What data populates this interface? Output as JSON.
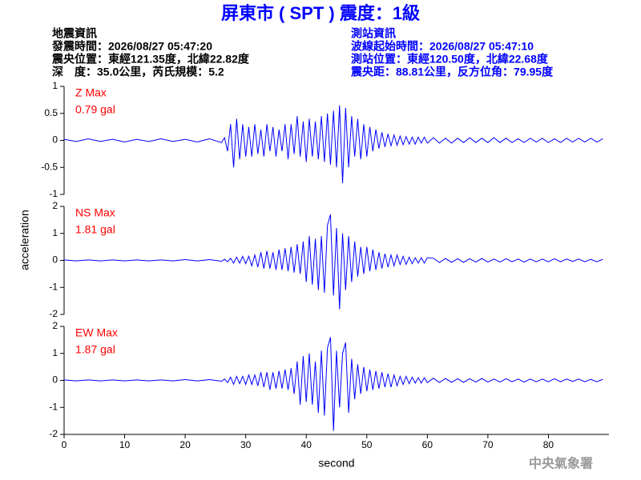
{
  "header": {
    "title": "屏東市 ( SPT ) 震度：1級",
    "left": [
      "地震資訊",
      "發震時間：2026/08/27 05:47:20",
      "震央位置：東經121.35度，北緯22.82度",
      "深　度：35.0公里，芮氏規模：5.2"
    ],
    "right": [
      "測站資訊",
      "波線起始時間：2026/08/27 05:47:10",
      "測站位置：東經120.50度，北緯22.68度",
      "震央距：88.81公里，反方位角：79.95度"
    ]
  },
  "footer": "中央氣象署",
  "chart_data": [
    {
      "type": "line",
      "annotations": [
        "Z Max",
        "0.79 gal"
      ],
      "xlim": [
        0,
        90
      ],
      "ylim": [
        -1,
        1
      ],
      "yticks": [
        -1,
        -0.5,
        0,
        0.5,
        1
      ],
      "x": [
        0,
        2,
        4,
        6,
        8,
        10,
        12,
        14,
        16,
        18,
        20,
        22,
        24,
        26,
        26.5,
        27,
        27.5,
        28,
        28.5,
        29,
        29.5,
        30,
        30.5,
        31,
        31.5,
        32,
        32.5,
        33,
        33.5,
        34,
        34.5,
        35,
        35.5,
        36,
        36.5,
        37,
        37.5,
        38,
        38.5,
        39,
        39.5,
        40,
        40.5,
        41,
        41.5,
        42,
        42.5,
        43,
        43.5,
        44,
        44.5,
        45,
        45.5,
        46,
        46.5,
        47,
        47.5,
        48,
        48.5,
        49,
        49.5,
        50,
        50.5,
        51,
        51.5,
        52,
        52.5,
        53,
        53.5,
        54,
        54.5,
        55,
        55.5,
        56,
        56.5,
        57,
        57.5,
        58,
        58.5,
        59,
        59.5,
        60,
        61,
        62,
        63,
        64,
        65,
        66,
        67,
        68,
        69,
        70,
        71,
        72,
        73,
        74,
        75,
        76,
        77,
        78,
        79,
        80,
        81,
        82,
        83,
        84,
        85,
        86,
        87,
        88,
        89
      ],
      "series": [
        {
          "color": "#0000ff",
          "values": [
            0.02,
            -0.02,
            0.03,
            -0.02,
            0.02,
            -0.03,
            0.02,
            -0.02,
            0.03,
            -0.02,
            0.02,
            -0.03,
            0.03,
            -0.04,
            0.05,
            -0.2,
            0.3,
            -0.5,
            0.4,
            -0.35,
            0.3,
            -0.3,
            0.25,
            -0.3,
            0.3,
            -0.25,
            0.2,
            -0.3,
            0.3,
            -0.2,
            0.25,
            -0.3,
            0.2,
            -0.2,
            0.3,
            -0.35,
            0.3,
            -0.25,
            0.45,
            -0.3,
            0.35,
            -0.4,
            0.4,
            -0.3,
            0.35,
            -0.35,
            0.45,
            -0.4,
            0.5,
            -0.45,
            0.55,
            -0.5,
            0.65,
            -0.79,
            0.6,
            -0.5,
            0.45,
            -0.3,
            0.4,
            -0.35,
            0.3,
            -0.3,
            0.25,
            -0.2,
            0.2,
            -0.15,
            0.15,
            -0.12,
            0.12,
            -0.1,
            0.1,
            -0.09,
            0.08,
            -0.08,
            0.07,
            -0.07,
            0.06,
            -0.07,
            0.06,
            -0.05,
            0.06,
            -0.05,
            0.05,
            -0.05,
            0.04,
            -0.05,
            0.04,
            -0.04,
            0.05,
            -0.04,
            0.04,
            -0.04,
            0.05,
            -0.04,
            0.04,
            -0.04,
            0.03,
            -0.04,
            0.04,
            -0.03,
            0.04,
            -0.04,
            0.03,
            -0.04,
            0.04,
            -0.03,
            0.04,
            -0.03,
            0.04,
            -0.03,
            0.03
          ]
        }
      ]
    },
    {
      "type": "line",
      "annotations": [
        "NS Max",
        "1.81 gal"
      ],
      "ylabel": "acceleration",
      "xlim": [
        0,
        90
      ],
      "ylim": [
        -2,
        2
      ],
      "yticks": [
        -2,
        -1,
        0,
        1,
        2
      ],
      "x": [
        0,
        2,
        4,
        6,
        8,
        10,
        12,
        14,
        16,
        18,
        20,
        22,
        24,
        26,
        26.5,
        27,
        27.5,
        28,
        28.5,
        29,
        29.5,
        30,
        30.5,
        31,
        31.5,
        32,
        32.5,
        33,
        33.5,
        34,
        34.5,
        35,
        35.5,
        36,
        36.5,
        37,
        37.5,
        38,
        38.5,
        39,
        39.5,
        40,
        40.5,
        41,
        41.5,
        42,
        42.5,
        43,
        43.5,
        44,
        44.5,
        45,
        45.5,
        46,
        46.5,
        47,
        47.5,
        48,
        48.5,
        49,
        49.5,
        50,
        50.5,
        51,
        51.5,
        52,
        52.5,
        53,
        53.5,
        54,
        54.5,
        55,
        55.5,
        56,
        56.5,
        57,
        57.5,
        58,
        58.5,
        59,
        59.5,
        60,
        61,
        62,
        63,
        64,
        65,
        66,
        67,
        68,
        69,
        70,
        71,
        72,
        73,
        74,
        75,
        76,
        77,
        78,
        79,
        80,
        81,
        82,
        83,
        84,
        85,
        86,
        87,
        88,
        89
      ],
      "series": [
        {
          "color": "#0000ff",
          "values": [
            0.02,
            -0.02,
            0.02,
            -0.02,
            0.02,
            -0.02,
            0.02,
            -0.02,
            0.02,
            -0.02,
            0.03,
            -0.02,
            0.03,
            -0.03,
            0.04,
            -0.05,
            0.08,
            -0.1,
            0.12,
            -0.1,
            0.15,
            -0.12,
            0.15,
            -0.2,
            0.2,
            -0.25,
            0.3,
            -0.3,
            0.35,
            -0.3,
            0.3,
            -0.35,
            0.4,
            -0.35,
            0.45,
            -0.4,
            0.5,
            -0.45,
            0.6,
            -0.5,
            0.7,
            -0.8,
            0.9,
            -0.9,
            0.8,
            -1.1,
            0.9,
            -1.2,
            1.3,
            1.7,
            -1.3,
            1.2,
            -1.81,
            1.0,
            -1.1,
            0.9,
            -0.8,
            0.7,
            -0.6,
            0.5,
            -0.5,
            0.5,
            -0.4,
            0.4,
            -0.35,
            0.3,
            -0.3,
            0.25,
            -0.25,
            0.2,
            -0.2,
            0.2,
            -0.15,
            0.15,
            -0.15,
            0.12,
            -0.12,
            0.1,
            -0.1,
            0.1,
            -0.1,
            0.1,
            0.08,
            -0.08,
            0.07,
            -0.07,
            0.06,
            -0.07,
            0.06,
            -0.06,
            0.07,
            -0.06,
            0.05,
            -0.06,
            0.06,
            -0.05,
            0.05,
            -0.06,
            0.05,
            -0.05,
            0.05,
            -0.05,
            0.06,
            -0.05,
            0.05,
            -0.04,
            0.05,
            -0.05,
            0.04,
            -0.05,
            0.04
          ]
        }
      ]
    },
    {
      "type": "line",
      "annotations": [
        "EW Max",
        "1.87 gal"
      ],
      "xlabel": "second",
      "xlim": [
        0,
        90
      ],
      "xticks": [
        0,
        10,
        20,
        30,
        40,
        50,
        60,
        70,
        80
      ],
      "ylim": [
        -2,
        2
      ],
      "yticks": [
        -2,
        -1,
        0,
        1,
        2
      ],
      "x": [
        0,
        2,
        4,
        6,
        8,
        10,
        12,
        14,
        16,
        18,
        20,
        22,
        24,
        26,
        26.5,
        27,
        27.5,
        28,
        28.5,
        29,
        29.5,
        30,
        30.5,
        31,
        31.5,
        32,
        32.5,
        33,
        33.5,
        34,
        34.5,
        35,
        35.5,
        36,
        36.5,
        37,
        37.5,
        38,
        38.5,
        39,
        39.5,
        40,
        40.5,
        41,
        41.5,
        42,
        42.5,
        43,
        43.5,
        44,
        44.5,
        45,
        45.5,
        46,
        46.5,
        47,
        47.5,
        48,
        48.5,
        49,
        49.5,
        50,
        50.5,
        51,
        51.5,
        52,
        52.5,
        53,
        53.5,
        54,
        54.5,
        55,
        55.5,
        56,
        56.5,
        57,
        57.5,
        58,
        58.5,
        59,
        59.5,
        60,
        61,
        62,
        63,
        64,
        65,
        66,
        67,
        68,
        69,
        70,
        71,
        72,
        73,
        74,
        75,
        76,
        77,
        78,
        79,
        80,
        81,
        82,
        83,
        84,
        85,
        86,
        87,
        88,
        89
      ],
      "series": [
        {
          "color": "#0000ff",
          "values": [
            0.02,
            -0.02,
            0.02,
            -0.02,
            0.02,
            -0.02,
            0.02,
            -0.02,
            0.02,
            -0.02,
            0.03,
            -0.02,
            0.03,
            -0.03,
            0.05,
            -0.08,
            0.12,
            -0.15,
            0.15,
            -0.12,
            0.15,
            -0.15,
            0.2,
            -0.15,
            0.2,
            -0.2,
            0.3,
            -0.25,
            0.3,
            -0.35,
            0.3,
            -0.3,
            0.35,
            -0.3,
            0.4,
            -0.35,
            0.45,
            -0.5,
            0.7,
            -0.9,
            0.9,
            -0.8,
            1.0,
            -0.9,
            0.7,
            -1.2,
            1.1,
            -1.3,
            1.2,
            1.6,
            -1.87,
            1.1,
            -1.0,
            1.0,
            1.4,
            -1.2,
            0.8,
            -0.7,
            0.6,
            -0.5,
            0.5,
            -0.4,
            0.4,
            -0.35,
            0.35,
            -0.3,
            0.3,
            -0.25,
            0.25,
            -0.25,
            0.2,
            -0.2,
            0.15,
            -0.15,
            0.15,
            -0.12,
            0.12,
            -0.1,
            0.1,
            -0.1,
            0.1,
            -0.08,
            0.08,
            -0.08,
            0.07,
            -0.07,
            0.06,
            -0.07,
            0.06,
            -0.06,
            0.07,
            -0.06,
            0.05,
            -0.06,
            0.06,
            -0.05,
            0.05,
            -0.06,
            0.05,
            -0.05,
            0.05,
            -0.05,
            0.06,
            -0.05,
            0.05,
            -0.04,
            0.05,
            -0.05,
            0.04,
            -0.05,
            0.04
          ]
        }
      ]
    }
  ]
}
